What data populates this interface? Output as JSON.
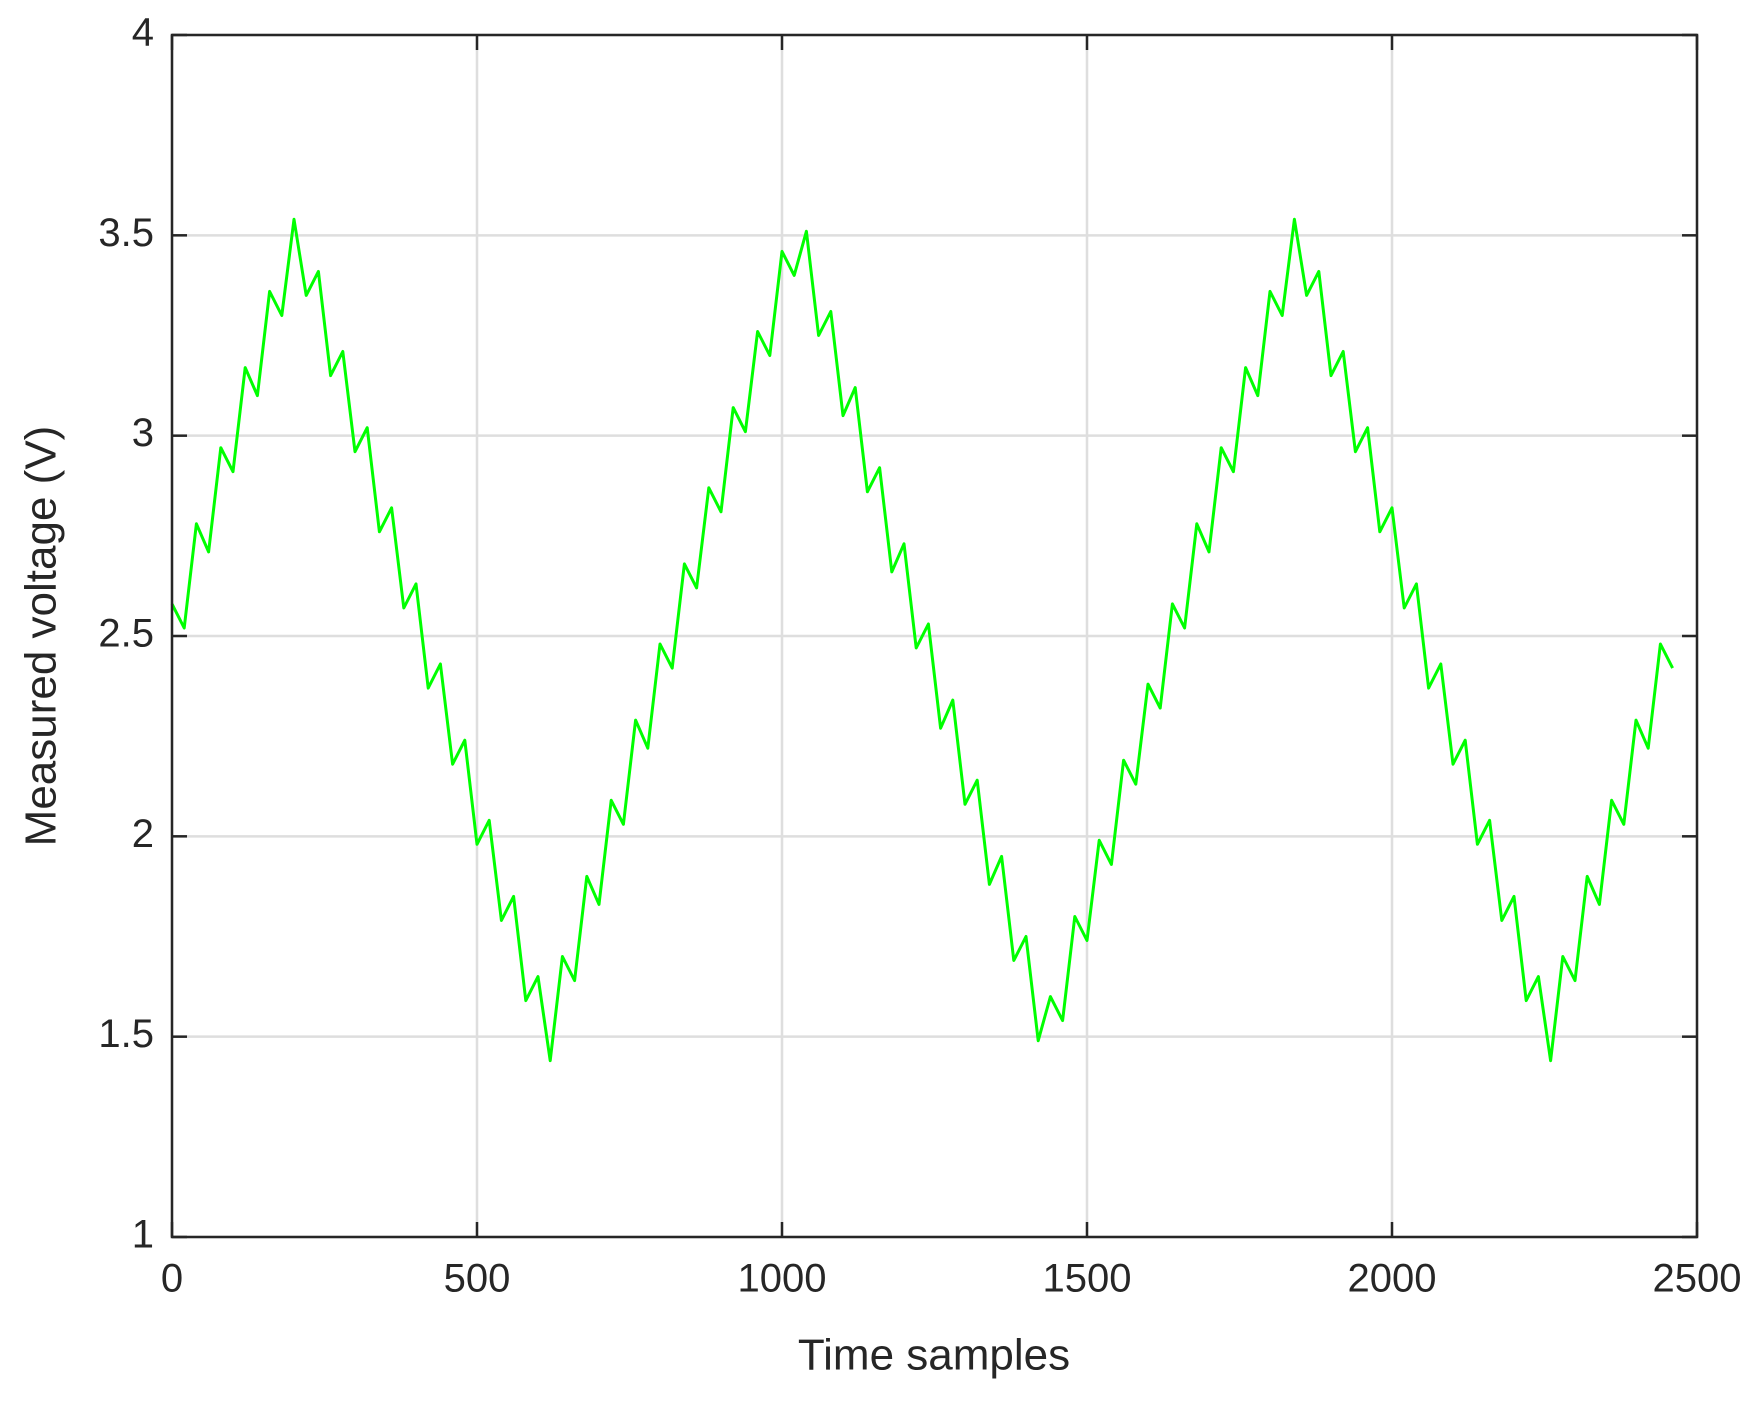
{
  "chart_data": {
    "type": "line",
    "xlabel": "Time samples",
    "ylabel": "Measured voltage (V)",
    "x": [
      0,
      20,
      40,
      60,
      80,
      100,
      120,
      140,
      160,
      180,
      200,
      220,
      240,
      260,
      280,
      300,
      320,
      340,
      360,
      380,
      400,
      420,
      440,
      460,
      480,
      500,
      520,
      540,
      560,
      580,
      600,
      620,
      640,
      660,
      680,
      700,
      720,
      740,
      760,
      780,
      800,
      820,
      840,
      860,
      880,
      900,
      920,
      940,
      960,
      980,
      1000,
      1020,
      1040,
      1060,
      1080,
      1100,
      1120,
      1140,
      1160,
      1180,
      1200,
      1220,
      1240,
      1260,
      1280,
      1300,
      1320,
      1340,
      1360,
      1380,
      1400,
      1420,
      1440,
      1460,
      1480,
      1500,
      1520,
      1540,
      1560,
      1580,
      1600,
      1620,
      1640,
      1660,
      1680,
      1700,
      1720,
      1740,
      1760,
      1780,
      1800,
      1820,
      1840,
      1860,
      1880,
      1900,
      1920,
      1940,
      1960,
      1980,
      2000,
      2020,
      2040,
      2060,
      2080,
      2100,
      2120,
      2140,
      2160,
      2180,
      2200,
      2220,
      2240,
      2260,
      2280,
      2300,
      2320,
      2340,
      2360,
      2380,
      2400,
      2420,
      2440,
      2460
    ],
    "series": [
      {
        "color": "#00ff00",
        "values": [
          2.58,
          2.52,
          2.78,
          2.71,
          2.97,
          2.91,
          3.17,
          3.1,
          3.36,
          3.3,
          3.54,
          3.35,
          3.41,
          3.15,
          3.21,
          2.96,
          3.02,
          2.76,
          2.82,
          2.57,
          2.63,
          2.37,
          2.43,
          2.18,
          2.24,
          1.98,
          2.04,
          1.79,
          1.85,
          1.59,
          1.65,
          1.44,
          1.7,
          1.64,
          1.9,
          1.83,
          2.09,
          2.03,
          2.29,
          2.22,
          2.48,
          2.42,
          2.68,
          2.62,
          2.87,
          2.81,
          3.07,
          3.01,
          3.26,
          3.2,
          3.46,
          3.4,
          3.51,
          3.25,
          3.31,
          3.05,
          3.12,
          2.86,
          2.92,
          2.66,
          2.73,
          2.47,
          2.53,
          2.27,
          2.34,
          2.08,
          2.14,
          1.88,
          1.95,
          1.69,
          1.75,
          1.49,
          1.6,
          1.54,
          1.8,
          1.74,
          1.99,
          1.93,
          2.19,
          2.13,
          2.38,
          2.32,
          2.58,
          2.52,
          2.78,
          2.71,
          2.97,
          2.91,
          3.17,
          3.1,
          3.36,
          3.3,
          3.54,
          3.35,
          3.41,
          3.15,
          3.21,
          2.96,
          3.02,
          2.76,
          2.82,
          2.57,
          2.63,
          2.37,
          2.43,
          2.18,
          2.24,
          1.98,
          2.04,
          1.79,
          1.85,
          1.59,
          1.65,
          1.44,
          1.7,
          1.64,
          1.9,
          1.83,
          2.09,
          2.03,
          2.29,
          2.22,
          2.48,
          2.42
        ]
      }
    ],
    "xlim": [
      0,
      2500
    ],
    "xticks": [
      0,
      500,
      1000,
      1500,
      2000,
      2500
    ],
    "ylim": [
      1,
      4
    ],
    "yticks": [
      1,
      1.5,
      2,
      2.5,
      3,
      3.5,
      4
    ],
    "grid": true
  }
}
